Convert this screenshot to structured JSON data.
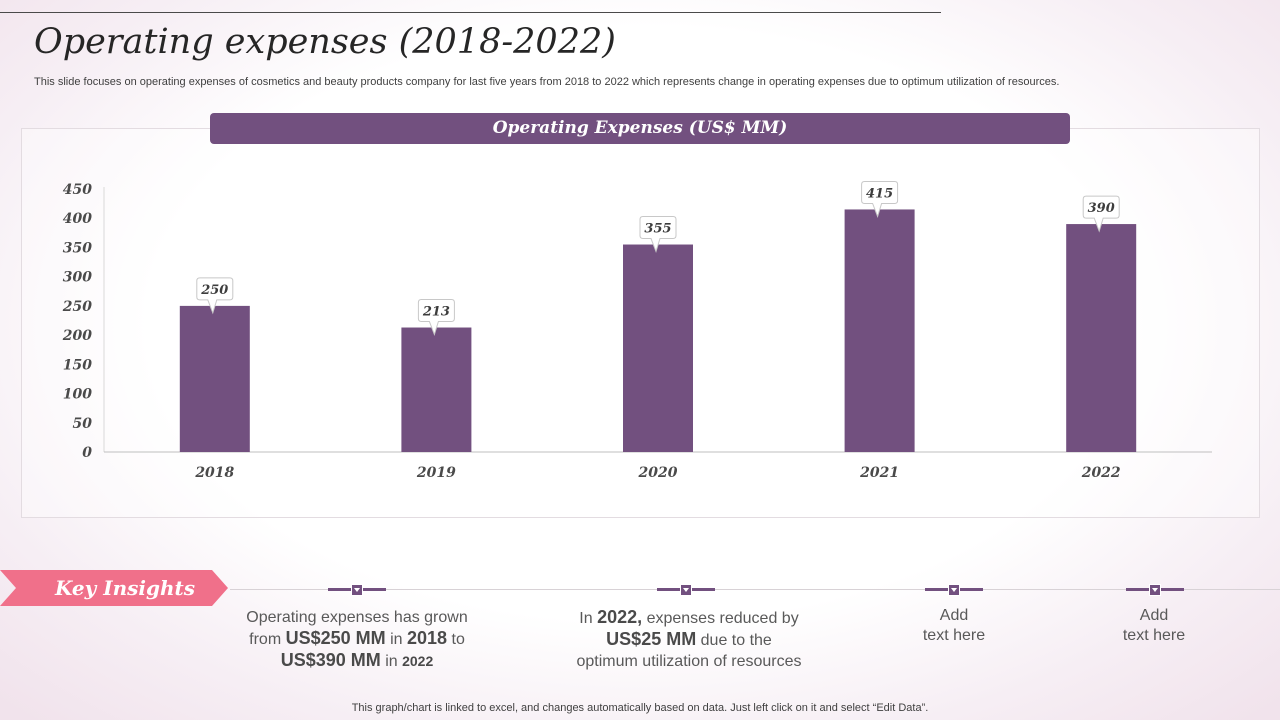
{
  "slide": {
    "title": "Operating expenses (2018-2022)",
    "subtitle": "This slide focuses on operating expenses of cosmetics and beauty products company for last five years from 2018 to 2022 which represents change in operating expenses due to optimum utilization of resources.",
    "footer": "This graph/chart is linked to excel,  and changes automatically based on data. Just left click on it and select “Edit Data”."
  },
  "chart_data": {
    "type": "bar",
    "title": "Operating Expenses (US$ MM)",
    "categories": [
      "2018",
      "2019",
      "2020",
      "2021",
      "2022"
    ],
    "values": [
      250,
      213,
      355,
      415,
      390
    ],
    "ylim": [
      0,
      450
    ],
    "yticks": [
      0,
      50,
      100,
      150,
      200,
      250,
      300,
      350,
      400,
      450
    ],
    "xlabel": "",
    "ylabel": "",
    "bar_color": "#72507f",
    "grid": false,
    "data_labels": true
  },
  "insights": {
    "heading": "Key Insights",
    "items": [
      {
        "line1": "Operating expenses has grown",
        "from_prefix": "from ",
        "from_value": "US$250 MM",
        "in1": " in ",
        "year1": "2018",
        "to": " to",
        "to_value": "US$390 MM",
        "in2": " in ",
        "year2": "2022"
      },
      {
        "in_prefix": "In ",
        "year": "2022,",
        "rest1": " expenses reduced by",
        "amount": "US$25 MM",
        "rest2": " due to the",
        "line3": "optimum utilization of resources"
      },
      {
        "line1": "Add",
        "line2": "text here"
      },
      {
        "line1": "Add",
        "line2": "text here"
      }
    ]
  },
  "colors": {
    "accent": "#72507f",
    "banner": "#f0708a"
  }
}
